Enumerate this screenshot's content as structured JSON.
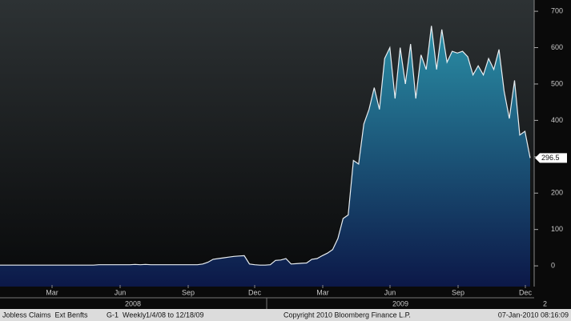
{
  "chart_data": {
    "type": "area",
    "values": [
      2,
      2,
      2,
      2,
      2,
      2,
      2,
      2,
      2,
      2,
      2,
      2,
      2,
      2,
      2,
      2,
      2,
      2,
      2,
      3,
      3,
      3,
      3,
      3,
      3,
      3,
      4,
      3,
      4,
      3,
      3,
      3,
      3,
      3,
      3,
      3,
      3,
      3,
      3,
      5,
      10,
      18,
      20,
      22,
      24,
      26,
      27,
      28,
      5,
      3,
      2,
      2,
      3,
      15,
      16,
      20,
      5,
      6,
      7,
      8,
      18,
      20,
      28,
      35,
      45,
      75,
      130,
      140,
      290,
      280,
      390,
      430,
      490,
      430,
      570,
      600,
      460,
      600,
      500,
      610,
      460,
      580,
      540,
      660,
      540,
      650,
      560,
      590,
      585,
      590,
      575,
      525,
      550,
      525,
      570,
      540,
      595,
      480,
      405,
      510,
      360,
      370,
      296.5
    ],
    "line_color": "#e8eef2",
    "area_top_color": "#2a8fa6",
    "area_bottom_color": "#0c1848",
    "ylim": [
      -57,
      731
    ],
    "yticks": [
      0,
      100,
      200,
      300,
      400,
      500,
      600,
      700
    ],
    "month_labels": [
      "Mar",
      "Jun",
      "Sep",
      "Dec",
      "Mar",
      "Jun",
      "Sep",
      "Dec"
    ],
    "year_labels": [
      "2008",
      "2009"
    ],
    "page_label": "2",
    "footer": {
      "security": "Jobless Claims  Ext Benfts",
      "chart_id": "G-1",
      "period": "Weekly",
      "range": "1/4/08 to 12/18/09",
      "copyright": "Copyright 2010 Bloomberg Finance L.P.",
      "timestamp": "07-Jan-2010 08:16:09"
    }
  }
}
